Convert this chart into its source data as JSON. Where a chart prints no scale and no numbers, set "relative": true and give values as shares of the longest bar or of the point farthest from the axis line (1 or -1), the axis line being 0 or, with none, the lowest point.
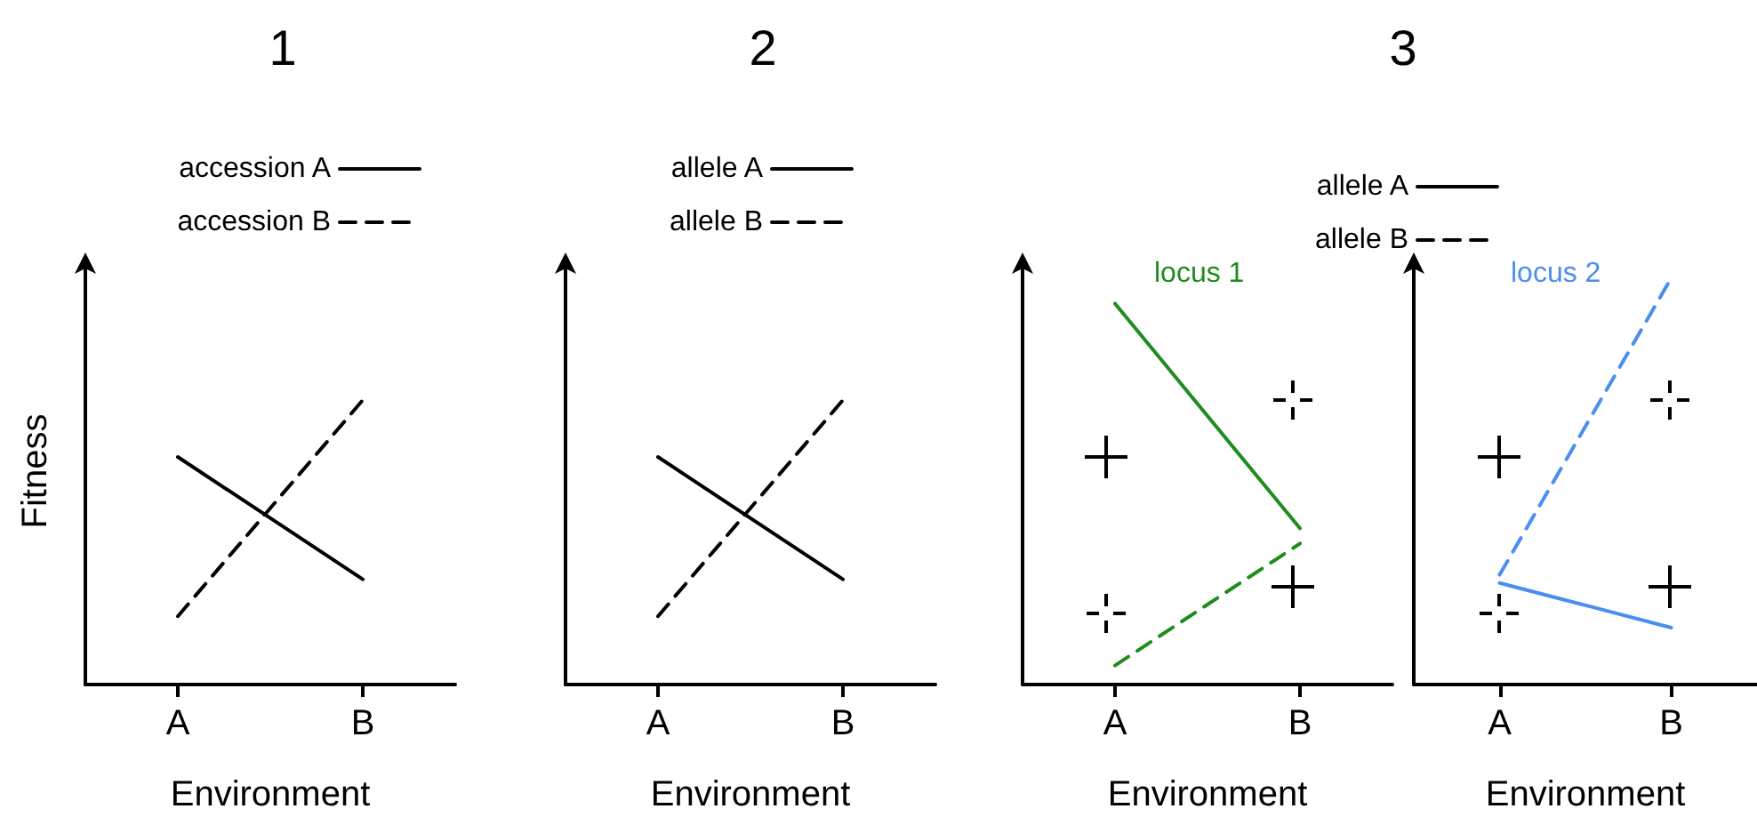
{
  "chart_data": [
    {
      "type": "line",
      "title": "1",
      "categories": [
        "A",
        "B"
      ],
      "xlabel": "Environment",
      "ylabel": "Fitness",
      "relative": true,
      "legend": "top",
      "marker": "none",
      "grid": false,
      "series": [
        {
          "name": "accession A",
          "color": "#000000",
          "line_style": "solid",
          "values": [
            0.8,
            0.37
          ]
        },
        {
          "name": "accession B",
          "color": "#000000",
          "line_style": "dashed",
          "values": [
            0.24,
            1
          ]
        }
      ]
    },
    {
      "type": "line",
      "title": "2",
      "categories": [
        "A",
        "B"
      ],
      "xlabel": "Environment",
      "relative": true,
      "legend": "top",
      "marker": "none",
      "grid": false,
      "series": [
        {
          "name": "allele A",
          "color": "#000000",
          "line_style": "solid",
          "values": [
            0.8,
            0.37
          ]
        },
        {
          "name": "allele B",
          "color": "#000000",
          "line_style": "dashed",
          "values": [
            0.24,
            1
          ]
        }
      ]
    },
    {
      "type": "line",
      "title": "3",
      "categories": [
        "A",
        "B"
      ],
      "xlabel": "Environment",
      "relative": true,
      "legend": "top",
      "marker": "none",
      "grid": false,
      "annotations": [
        "locus 1"
      ],
      "series": [
        {
          "name": "allele A",
          "color": "#1e8c1e",
          "line_style": "solid",
          "values": [
            1,
            0.41
          ]
        },
        {
          "name": "allele B",
          "color": "#1e8c1e",
          "line_style": "dashed",
          "values": [
            0.05,
            0.37
          ]
        }
      ]
    },
    {
      "type": "line",
      "categories": [
        "A",
        "B"
      ],
      "xlabel": "Environment",
      "relative": true,
      "marker": "none",
      "grid": false,
      "annotations": [
        "locus 2"
      ],
      "series": [
        {
          "color": "#4a8ef0",
          "line_style": "solid",
          "values": [
            0.25,
            0.14
          ]
        },
        {
          "color": "#4a8ef0",
          "line_style": "dashed",
          "values": [
            0.27,
            1
          ]
        }
      ]
    }
  ]
}
